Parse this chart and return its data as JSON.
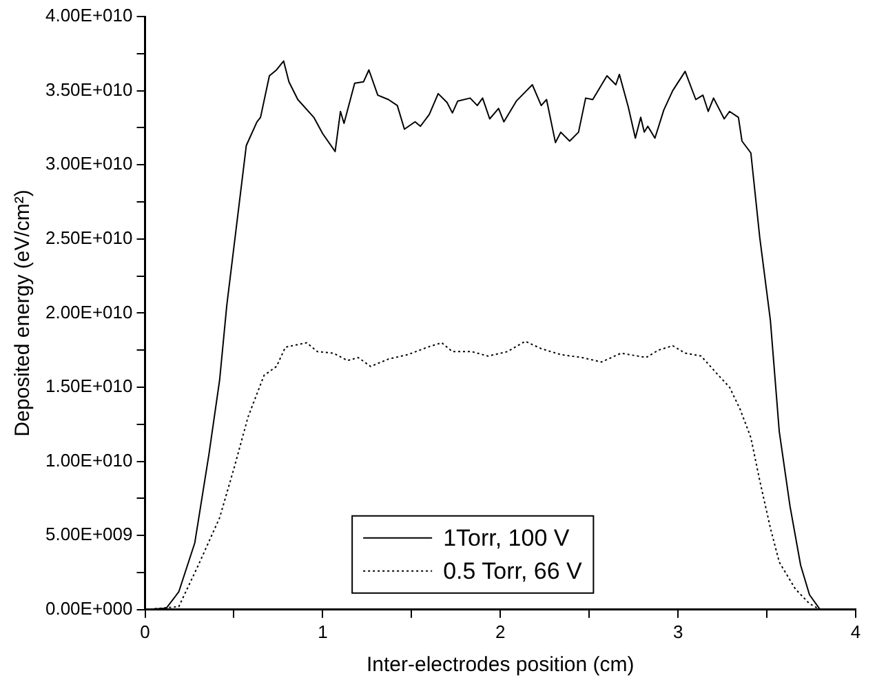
{
  "chart_data": {
    "type": "line",
    "xlabel": "Inter-electrodes position (cm)",
    "ylabel": "Deposited energy (eV/cm²)",
    "xlim": [
      0,
      4
    ],
    "xticks": [
      0,
      {
        "value": 0.5,
        "label": null
      },
      1,
      {
        "value": 1.5,
        "label": null
      },
      2,
      {
        "value": 2.5,
        "label": null
      },
      3,
      {
        "value": 3.5,
        "label": null
      },
      4
    ],
    "ylim": [
      0,
      40000000000.0
    ],
    "yticks": [
      {
        "value": 0,
        "label": "0.00E+000"
      },
      {
        "value": 2500000000.0,
        "label": null
      },
      {
        "value": 5000000000.0,
        "label": "5.00E+009"
      },
      {
        "value": 7500000000.0,
        "label": null
      },
      {
        "value": 10000000000.0,
        "label": "1.00E+010"
      },
      {
        "value": 12500000000.0,
        "label": null
      },
      {
        "value": 15000000000.0,
        "label": "1.50E+010"
      },
      {
        "value": 17500000000.0,
        "label": null
      },
      {
        "value": 20000000000.0,
        "label": "2.00E+010"
      },
      {
        "value": 22500000000.0,
        "label": null
      },
      {
        "value": 25000000000.0,
        "label": "2.50E+010"
      },
      {
        "value": 27500000000.0,
        "label": null
      },
      {
        "value": 30000000000.0,
        "label": "3.00E+010"
      },
      {
        "value": 32500000000.0,
        "label": null
      },
      {
        "value": 35000000000.0,
        "label": "3.50E+010"
      },
      {
        "value": 37500000000.0,
        "label": null
      },
      {
        "value": 40000000000.0,
        "label": "4.00E+010"
      }
    ],
    "grid": false,
    "legend": "bottom",
    "marker": "none",
    "series": [
      {
        "name": "1Torr, 100 V",
        "color": "#000000",
        "line_style": "solid",
        "x": [
          0,
          0.12,
          0.19,
          0.28,
          0.36,
          0.42,
          0.46,
          0.57,
          0.63,
          0.65,
          0.7,
          0.74,
          0.78,
          0.81,
          0.86,
          0.95,
          1.0,
          1.07,
          1.1,
          1.12,
          1.18,
          1.23,
          1.26,
          1.31,
          1.37,
          1.42,
          1.46,
          1.52,
          1.55,
          1.6,
          1.65,
          1.7,
          1.73,
          1.76,
          1.83,
          1.87,
          1.9,
          1.94,
          1.99,
          2.02,
          2.09,
          2.18,
          2.23,
          2.26,
          2.31,
          2.34,
          2.39,
          2.44,
          2.48,
          2.52,
          2.6,
          2.65,
          2.67,
          2.72,
          2.76,
          2.79,
          2.81,
          2.83,
          2.87,
          2.92,
          2.97,
          3.04,
          3.1,
          3.14,
          3.17,
          3.2,
          3.26,
          3.29,
          3.34,
          3.36,
          3.41,
          3.46,
          3.52,
          3.57,
          3.63,
          3.69,
          3.74,
          3.8
        ],
        "values": [
          0,
          100000000.0,
          1200000000.0,
          4500000000.0,
          10500000000.0,
          15500000000.0,
          20500000000.0,
          31300000000.0,
          32900000000.0,
          33200000000.0,
          36000000000.0,
          36400000000.0,
          37000000000.0,
          35600000000.0,
          34400000000.0,
          33200000000.0,
          32100000000.0,
          30900000000.0,
          33600000000.0,
          32800000000.0,
          35500000000.0,
          35600000000.0,
          36400000000.0,
          34700000000.0,
          34400000000.0,
          34000000000.0,
          32400000000.0,
          32900000000.0,
          32600000000.0,
          33400000000.0,
          34800000000.0,
          34200000000.0,
          33500000000.0,
          34300000000.0,
          34500000000.0,
          34000000000.0,
          34500000000.0,
          33100000000.0,
          33800000000.0,
          32900000000.0,
          34300000000.0,
          35400000000.0,
          34000000000.0,
          34400000000.0,
          31500000000.0,
          32200000000.0,
          31600000000.0,
          32200000000.0,
          34500000000.0,
          34400000000.0,
          36000000000.0,
          35400000000.0,
          36100000000.0,
          33900000000.0,
          31800000000.0,
          33200000000.0,
          32200000000.0,
          32600000000.0,
          31800000000.0,
          33700000000.0,
          35000000000.0,
          36300000000.0,
          34400000000.0,
          34700000000.0,
          33600000000.0,
          34500000000.0,
          33100000000.0,
          33600000000.0,
          33200000000.0,
          31600000000.0,
          30800000000.0,
          25100000000.0,
          19500000000.0,
          12000000000.0,
          7000000000.0,
          3000000000.0,
          1000000000.0,
          0
        ]
      },
      {
        "name": "0.5 Torr, 66 V",
        "color": "#000000",
        "line_style": "dotted",
        "x": [
          0,
          0.19,
          0.3,
          0.42,
          0.5,
          0.58,
          0.67,
          0.74,
          0.79,
          0.91,
          0.97,
          1.06,
          1.14,
          1.2,
          1.27,
          1.37,
          1.48,
          1.59,
          1.67,
          1.73,
          1.84,
          1.93,
          2.04,
          2.14,
          2.23,
          2.34,
          2.46,
          2.57,
          2.68,
          2.82,
          2.89,
          2.97,
          3.04,
          3.13,
          3.22,
          3.29,
          3.35,
          3.41,
          3.46,
          3.52,
          3.57,
          3.66,
          3.74,
          3.8
        ],
        "values": [
          0,
          200000000.0,
          3000000000.0,
          6200000000.0,
          9500000000.0,
          13000000000.0,
          15800000000.0,
          16400000000.0,
          17700000000.0,
          18000000000.0,
          17400000000.0,
          17300000000.0,
          16800000000.0,
          17000000000.0,
          16400000000.0,
          16900000000.0,
          17200000000.0,
          17700000000.0,
          18000000000.0,
          17400000000.0,
          17400000000.0,
          17100000000.0,
          17400000000.0,
          18100000000.0,
          17600000000.0,
          17200000000.0,
          17000000000.0,
          16700000000.0,
          17300000000.0,
          17000000000.0,
          17500000000.0,
          17800000000.0,
          17300000000.0,
          17100000000.0,
          15900000000.0,
          15000000000.0,
          13500000000.0,
          11600000000.0,
          8700000000.0,
          5500000000.0,
          3200000000.0,
          1400000000.0,
          400000000.0,
          0
        ]
      }
    ]
  }
}
